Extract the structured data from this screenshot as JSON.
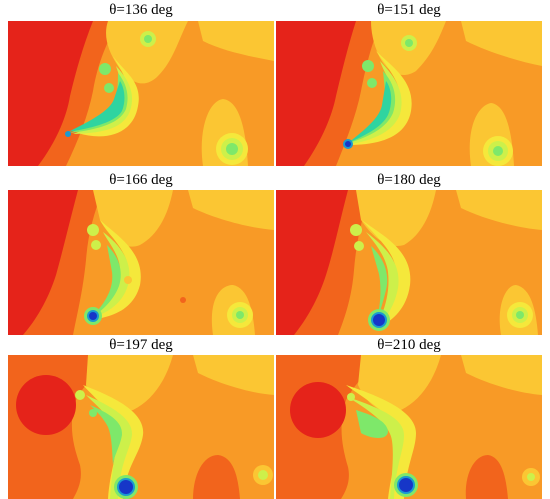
{
  "figure": {
    "panels": [
      {
        "caption": "θ=136 deg",
        "angle_deg": 136
      },
      {
        "caption": "θ=151 deg",
        "angle_deg": 151
      },
      {
        "caption": "θ=166 deg",
        "angle_deg": 166
      },
      {
        "caption": "θ=180 deg",
        "angle_deg": 180
      },
      {
        "caption": "θ=197 deg",
        "angle_deg": 197
      },
      {
        "caption": "θ=210 deg",
        "angle_deg": 210
      }
    ],
    "colormap": [
      "#e5231a",
      "#f2641c",
      "#f89a26",
      "#fbc633",
      "#f5e83b",
      "#cdf04a",
      "#7ee86a",
      "#2fd4a0",
      "#1a9ad0",
      "#1636c8"
    ]
  }
}
